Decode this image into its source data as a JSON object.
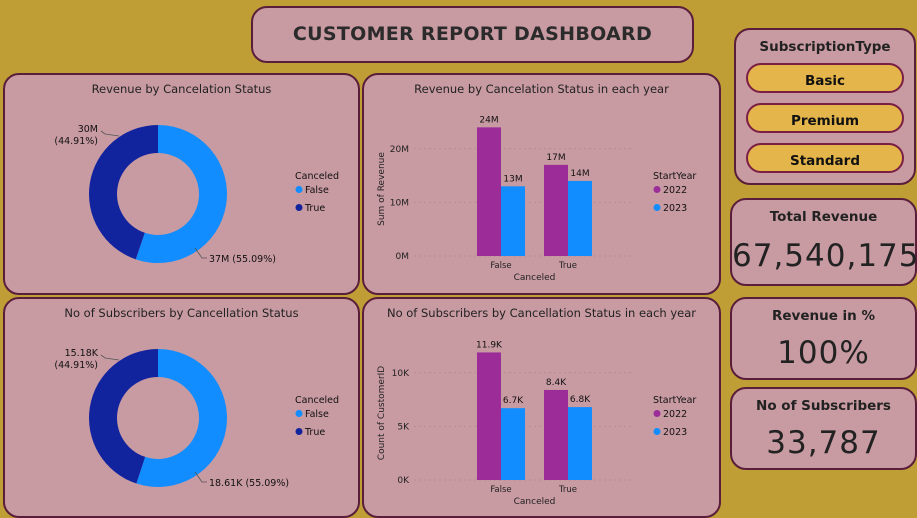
{
  "title": "CUSTOMER REPORT DASHBOARD",
  "slicer": {
    "title": "SubscriptionType",
    "options": [
      "Basic",
      "Premium",
      "Standard"
    ]
  },
  "kpis": {
    "total_revenue": {
      "label": "Total Revenue",
      "value": "67,540,175"
    },
    "revenue_pct": {
      "label": "Revenue in %",
      "value": "100%"
    },
    "subscribers": {
      "label": "No of Subscribers",
      "value": "33,787"
    }
  },
  "colors": {
    "false": "#118dff",
    "true": "#12239e",
    "year2022": "#9b2c98",
    "year2023": "#118dff"
  },
  "chart_data": [
    {
      "type": "pie",
      "title": "Revenue by Cancelation Status",
      "legend_title": "Canceled",
      "categories": [
        "False",
        "True"
      ],
      "values": [
        37,
        30
      ],
      "unit": "M",
      "labels": [
        "37M (55.09%)",
        "30M (44.91%)"
      ],
      "label_true_value": "30M",
      "label_true_pct": "(44.91%)",
      "donut": true,
      "legend": "right"
    },
    {
      "type": "bar",
      "title": "Revenue by Cancelation Status in each year",
      "xlabel": "Canceled",
      "ylabel": "Sum of Revenue",
      "legend_title": "StartYear",
      "categories": [
        "False",
        "True"
      ],
      "series": [
        {
          "name": "2022",
          "values": [
            24,
            17
          ],
          "labels": [
            "24M",
            "17M"
          ]
        },
        {
          "name": "2023",
          "values": [
            13,
            14
          ],
          "labels": [
            "13M",
            "14M"
          ]
        }
      ],
      "yticks": [
        0,
        10,
        20
      ],
      "ytick_labels": [
        "0M",
        "10M",
        "20M"
      ],
      "ylim": [
        0,
        25
      ],
      "legend": "right"
    },
    {
      "type": "pie",
      "title": "No of Subscribers by Cancellation Status",
      "legend_title": "Canceled",
      "categories": [
        "False",
        "True"
      ],
      "values": [
        18.61,
        15.18
      ],
      "unit": "K",
      "labels": [
        "18.61K (55.09%)",
        "15.18K (44.91%)"
      ],
      "label_true_value": "15.18K",
      "label_true_pct": "(44.91%)",
      "donut": true,
      "legend": "right"
    },
    {
      "type": "bar",
      "title": "No of Subscribers by Cancellation Status in each year",
      "xlabel": "Canceled",
      "ylabel": "Count of CustomerID",
      "legend_title": "StartYear",
      "categories": [
        "False",
        "True"
      ],
      "series": [
        {
          "name": "2022",
          "values": [
            11.9,
            8.4
          ],
          "labels": [
            "11.9K",
            "8.4K"
          ]
        },
        {
          "name": "2023",
          "values": [
            6.7,
            6.8
          ],
          "labels": [
            "6.7K",
            "6.8K"
          ]
        }
      ],
      "yticks": [
        0,
        5,
        10
      ],
      "ytick_labels": [
        "0K",
        "5K",
        "10K"
      ],
      "ylim": [
        0,
        12.5
      ],
      "legend": "right"
    }
  ]
}
